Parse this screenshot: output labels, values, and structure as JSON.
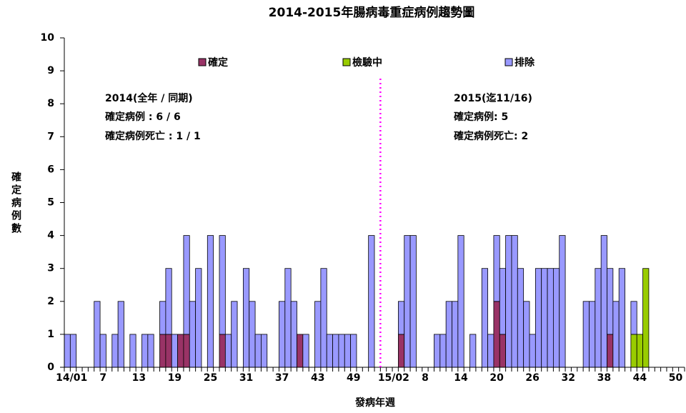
{
  "chart_data": {
    "type": "stacked-bar",
    "title": "2014-2015年腸病毒重症病例趨勢圖",
    "x_label": "發病年週",
    "y_label": "確定病例數",
    "categories": [
      "14/01",
      null,
      null,
      null,
      null,
      null,
      "7",
      null,
      null,
      null,
      null,
      null,
      "13",
      null,
      null,
      null,
      null,
      null,
      "19",
      null,
      null,
      null,
      null,
      null,
      "25",
      null,
      null,
      null,
      null,
      null,
      "31",
      null,
      null,
      null,
      null,
      null,
      "37",
      null,
      null,
      null,
      null,
      null,
      "43",
      null,
      null,
      null,
      null,
      null,
      "49",
      null,
      null,
      null,
      null,
      null,
      "15/02",
      null,
      null,
      null,
      null,
      null,
      "8",
      null,
      null,
      null,
      null,
      null,
      "14",
      null,
      null,
      null,
      null,
      null,
      "20",
      null,
      null,
      null,
      null,
      null,
      "26",
      null,
      null,
      null,
      null,
      null,
      "32",
      null,
      null,
      null,
      null,
      null,
      "38",
      null,
      null,
      null,
      null,
      null,
      "44",
      null,
      null,
      null,
      null,
      null,
      "50",
      null
    ],
    "series": [
      {
        "name": "確定",
        "color": "#993366",
        "values": [
          0,
          0,
          0,
          0,
          0,
          0,
          0,
          0,
          0,
          0,
          0,
          0,
          0,
          0,
          0,
          0,
          1,
          1,
          0,
          1,
          1,
          0,
          0,
          0,
          0,
          0,
          1,
          0,
          0,
          0,
          0,
          0,
          0,
          0,
          0,
          0,
          0,
          0,
          0,
          1,
          0,
          0,
          0,
          0,
          0,
          0,
          0,
          0,
          0,
          0,
          0,
          0,
          0,
          0,
          0,
          0,
          1,
          0,
          0,
          0,
          0,
          0,
          0,
          0,
          0,
          0,
          0,
          0,
          0,
          0,
          0,
          0,
          2,
          1,
          0,
          0,
          0,
          0,
          0,
          0,
          0,
          0,
          0,
          0,
          0,
          0,
          0,
          0,
          0,
          0,
          0,
          1,
          0,
          0,
          0,
          0,
          0,
          0,
          0,
          0,
          0,
          0,
          0,
          0
        ]
      },
      {
        "name": "檢驗中",
        "color": "#99cc00",
        "values": [
          0,
          0,
          0,
          0,
          0,
          0,
          0,
          0,
          0,
          0,
          0,
          0,
          0,
          0,
          0,
          0,
          0,
          0,
          0,
          0,
          0,
          0,
          0,
          0,
          0,
          0,
          0,
          0,
          0,
          0,
          0,
          0,
          0,
          0,
          0,
          0,
          0,
          0,
          0,
          0,
          0,
          0,
          0,
          0,
          0,
          0,
          0,
          0,
          0,
          0,
          0,
          0,
          0,
          0,
          0,
          0,
          0,
          0,
          0,
          0,
          0,
          0,
          0,
          0,
          0,
          0,
          0,
          0,
          0,
          0,
          0,
          0,
          0,
          0,
          0,
          0,
          0,
          0,
          0,
          0,
          0,
          0,
          0,
          0,
          0,
          0,
          0,
          0,
          0,
          0,
          0,
          0,
          0,
          0,
          0,
          1,
          1,
          3,
          0,
          0,
          0,
          0,
          0,
          0
        ]
      },
      {
        "name": "排除",
        "color": "#9999ff",
        "values": [
          1,
          1,
          0,
          0,
          0,
          2,
          1,
          0,
          1,
          2,
          0,
          1,
          0,
          1,
          1,
          0,
          1,
          2,
          1,
          0,
          3,
          2,
          3,
          0,
          4,
          0,
          3,
          1,
          2,
          0,
          3,
          2,
          1,
          1,
          0,
          0,
          2,
          3,
          2,
          0,
          1,
          0,
          2,
          3,
          1,
          1,
          1,
          1,
          1,
          0,
          0,
          4,
          0,
          0,
          0,
          0,
          1,
          4,
          4,
          0,
          0,
          0,
          1,
          1,
          2,
          2,
          4,
          0,
          1,
          0,
          3,
          1,
          2,
          2,
          4,
          4,
          3,
          2,
          1,
          3,
          3,
          3,
          3,
          4,
          0,
          0,
          0,
          2,
          2,
          3,
          4,
          2,
          2,
          3,
          0,
          1,
          0,
          0,
          0,
          0,
          0,
          0,
          0,
          0
        ]
      }
    ],
    "ylim": [
      0,
      10
    ],
    "yticks": [
      0,
      1,
      2,
      3,
      4,
      5,
      6,
      7,
      8,
      9,
      10
    ],
    "annotations": [
      {
        "text": "2014(全年 / 同期)",
        "color": "#000000"
      },
      {
        "text": "確定病例 : 6 / 6",
        "color": "#ff0000"
      },
      {
        "text": "確定病例死亡 : 1 / 1",
        "color": "#ff00ff"
      },
      {
        "text": "2015(迄11/16)",
        "color": "#000000"
      },
      {
        "text": "確定病例: 5",
        "color": "#ff0000"
      },
      {
        "text": "確定病例死亡: 2",
        "color": "#ff00ff"
      }
    ]
  }
}
